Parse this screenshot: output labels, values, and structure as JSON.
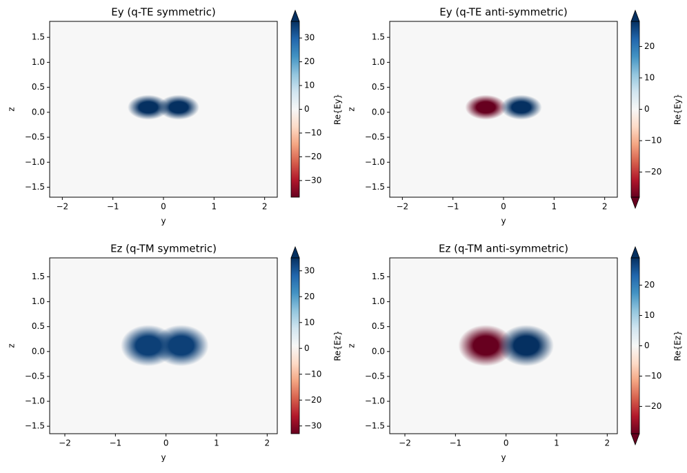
{
  "chart_data": [
    {
      "type": "heatmap",
      "title": "Ey (q-TE symmetric)",
      "xlabel": "y",
      "ylabel": "z",
      "colorbar_label": "Re{Ey}",
      "colormap": "RdBu_r",
      "extend": "max",
      "xlim": [
        -2.25,
        2.25
      ],
      "ylim": [
        -1.7,
        1.82
      ],
      "clim": [
        -37,
        37
      ],
      "xticks": [
        {
          "value": -2,
          "label": "−2"
        },
        {
          "value": -1,
          "label": "−1"
        },
        0,
        1,
        2
      ],
      "yticks": [
        {
          "value": -1.5,
          "label": "−1.5"
        },
        {
          "value": -1.0,
          "label": "−1.0"
        },
        {
          "value": -0.5,
          "label": "−0.5"
        },
        {
          "value": 0,
          "label": "0.0"
        },
        0.5,
        {
          "value": 1.0,
          "label": "1.0"
        },
        1.5
      ],
      "cticks": [
        {
          "value": -30,
          "label": "−30"
        },
        {
          "value": -20,
          "label": "−20"
        },
        {
          "value": -10,
          "label": "−10"
        },
        0,
        10,
        20,
        30
      ],
      "blobs": [
        {
          "y": -0.3,
          "z": 0.1,
          "value": 37
        },
        {
          "y": 0.3,
          "z": 0.1,
          "value": 37
        }
      ]
    },
    {
      "type": "heatmap",
      "title": "Ey (q-TE anti-symmetric)",
      "xlabel": "y",
      "ylabel": "z",
      "colorbar_label": "Re{Ey}",
      "colormap": "RdBu_r",
      "extend": "both",
      "xlim": [
        -2.25,
        2.25
      ],
      "ylim": [
        -1.7,
        1.82
      ],
      "clim": [
        -28,
        28
      ],
      "xticks": [
        {
          "value": -2,
          "label": "−2"
        },
        {
          "value": -1,
          "label": "−1"
        },
        0,
        1,
        2
      ],
      "yticks": [
        {
          "value": -1.5,
          "label": "−1.5"
        },
        {
          "value": -1.0,
          "label": "−1.0"
        },
        {
          "value": -0.5,
          "label": "−0.5"
        },
        {
          "value": 0,
          "label": "0.0"
        },
        0.5,
        {
          "value": 1.0,
          "label": "1.0"
        },
        1.5
      ],
      "cticks": [
        {
          "value": -20,
          "label": "−20"
        },
        {
          "value": -10,
          "label": "−10"
        },
        0,
        10,
        20
      ],
      "blobs": [
        {
          "y": -0.35,
          "z": 0.1,
          "value": -28
        },
        {
          "y": 0.35,
          "z": 0.1,
          "value": 28
        }
      ]
    },
    {
      "type": "heatmap",
      "title": "Ez (q-TM symmetric)",
      "xlabel": "y",
      "ylabel": "z",
      "colorbar_label": "Re{Ez}",
      "colormap": "RdBu_r",
      "extend": "max",
      "xlim": [
        -2.3,
        2.2
      ],
      "ylim": [
        -1.65,
        1.88
      ],
      "clim": [
        -33,
        35
      ],
      "xticks": [
        {
          "value": -2,
          "label": "−2"
        },
        {
          "value": -1,
          "label": "−1"
        },
        0,
        1,
        2
      ],
      "yticks": [
        {
          "value": -1.5,
          "label": "−1.5"
        },
        {
          "value": -1.0,
          "label": "−1.0"
        },
        {
          "value": -0.5,
          "label": "−0.5"
        },
        {
          "value": 0,
          "label": "0.0"
        },
        0.5,
        {
          "value": 1.0,
          "label": "1.0"
        },
        1.5
      ],
      "cticks": [
        {
          "value": -30,
          "label": "−30"
        },
        {
          "value": -20,
          "label": "−20"
        },
        {
          "value": -10,
          "label": "−10"
        },
        0,
        10,
        20,
        30
      ],
      "blobs": [
        {
          "y": -0.35,
          "z": 0.12,
          "value": 33
        },
        {
          "y": 0.3,
          "z": 0.12,
          "value": 33
        }
      ]
    },
    {
      "type": "heatmap",
      "title": "Ez (q-TM anti-symmetric)",
      "xlabel": "y",
      "ylabel": "z",
      "colorbar_label": "Re{Ez}",
      "colormap": "RdBu_r",
      "extend": "both",
      "xlim": [
        -2.3,
        2.2
      ],
      "ylim": [
        -1.65,
        1.88
      ],
      "clim": [
        -29,
        29
      ],
      "xticks": [
        {
          "value": -2,
          "label": "−2"
        },
        {
          "value": -1,
          "label": "−1"
        },
        0,
        1,
        2
      ],
      "yticks": [
        {
          "value": -1.5,
          "label": "−1.5"
        },
        {
          "value": -1.0,
          "label": "−1.0"
        },
        {
          "value": -0.5,
          "label": "−0.5"
        },
        {
          "value": 0,
          "label": "0.0"
        },
        0.5,
        {
          "value": 1.0,
          "label": "1.0"
        },
        1.5
      ],
      "cticks": [
        {
          "value": -20,
          "label": "−20"
        },
        {
          "value": -10,
          "label": "−10"
        },
        0,
        10,
        20
      ],
      "blobs": [
        {
          "y": -0.4,
          "z": 0.12,
          "value": -29
        },
        {
          "y": 0.4,
          "z": 0.12,
          "value": 29
        }
      ]
    }
  ]
}
